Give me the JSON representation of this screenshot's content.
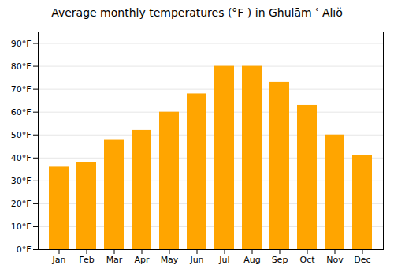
{
  "chart_data": {
    "type": "bar",
    "title": "Average monthly temperatures (°F ) in Ghulām ʿ Alīŏ",
    "categories": [
      "Jan",
      "Feb",
      "Mar",
      "Apr",
      "May",
      "Jun",
      "Jul",
      "Aug",
      "Sep",
      "Oct",
      "Nov",
      "Dec"
    ],
    "values": [
      36,
      38,
      48,
      52,
      60,
      68,
      80,
      80,
      73,
      63,
      50,
      41
    ],
    "color": "#FFA500",
    "ylim": [
      0,
      95
    ],
    "yticks": [
      {
        "value": 0,
        "label": "0°F"
      },
      {
        "value": 10,
        "label": "10°F"
      },
      {
        "value": 20,
        "label": "20°F"
      },
      {
        "value": 30,
        "label": "30°F"
      },
      {
        "value": 40,
        "label": "40°F"
      },
      {
        "value": 50,
        "label": "50°F"
      },
      {
        "value": 60,
        "label": "60°F"
      },
      {
        "value": 70,
        "label": "70°F"
      },
      {
        "value": 80,
        "label": "80°F"
      },
      {
        "value": 90,
        "label": "90°F"
      }
    ],
    "grid": true
  }
}
